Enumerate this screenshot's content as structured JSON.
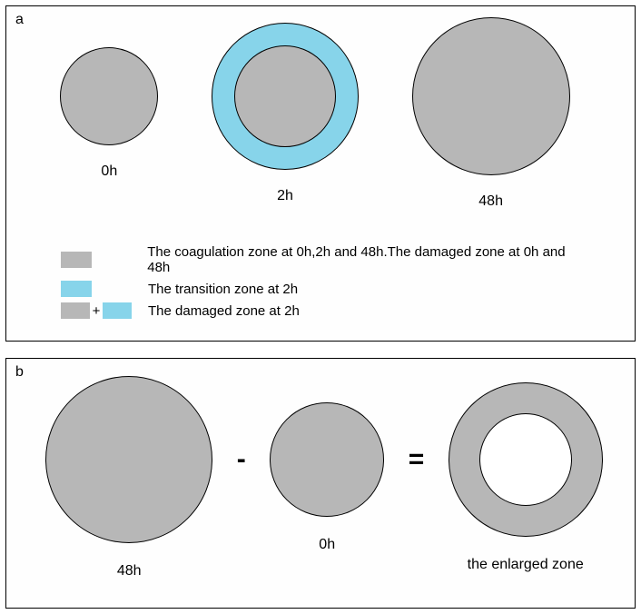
{
  "colors": {
    "grey": "#b7b7b7",
    "cyan": "#87d4ea",
    "white": "#ffffff",
    "stroke": "#000000"
  },
  "panelA": {
    "label": "a",
    "circles": [
      {
        "label": "0h",
        "outer_d": 108,
        "outer_fill": "grey",
        "inner_d": null,
        "inner_fill": null
      },
      {
        "label": "2h",
        "outer_d": 162,
        "outer_fill": "cyan",
        "inner_d": 112,
        "inner_fill": "grey"
      },
      {
        "label": "48h",
        "outer_d": 174,
        "outer_fill": "grey",
        "inner_d": null,
        "inner_fill": null
      }
    ],
    "legend": [
      {
        "swatches": [
          "grey"
        ],
        "text": "The coagulation zone at 0h,2h and 48h.The damaged zone at 0h and 48h"
      },
      {
        "swatches": [
          "cyan"
        ],
        "text": "The transition zone at 2h"
      },
      {
        "swatches": [
          "grey",
          "cyan"
        ],
        "text": "The damaged zone at 2h"
      }
    ]
  },
  "panelB": {
    "label": "b",
    "items": [
      {
        "type": "solid",
        "d": 184,
        "fill": "grey",
        "label": "48h"
      },
      {
        "type": "op",
        "text": "-"
      },
      {
        "type": "solid",
        "d": 126,
        "fill": "grey",
        "label": "0h"
      },
      {
        "type": "op",
        "text": "="
      },
      {
        "type": "ring",
        "outer_d": 170,
        "inner_d": 102,
        "outer_fill": "grey",
        "inner_fill": "white",
        "label": "the enlarged zone"
      }
    ]
  }
}
